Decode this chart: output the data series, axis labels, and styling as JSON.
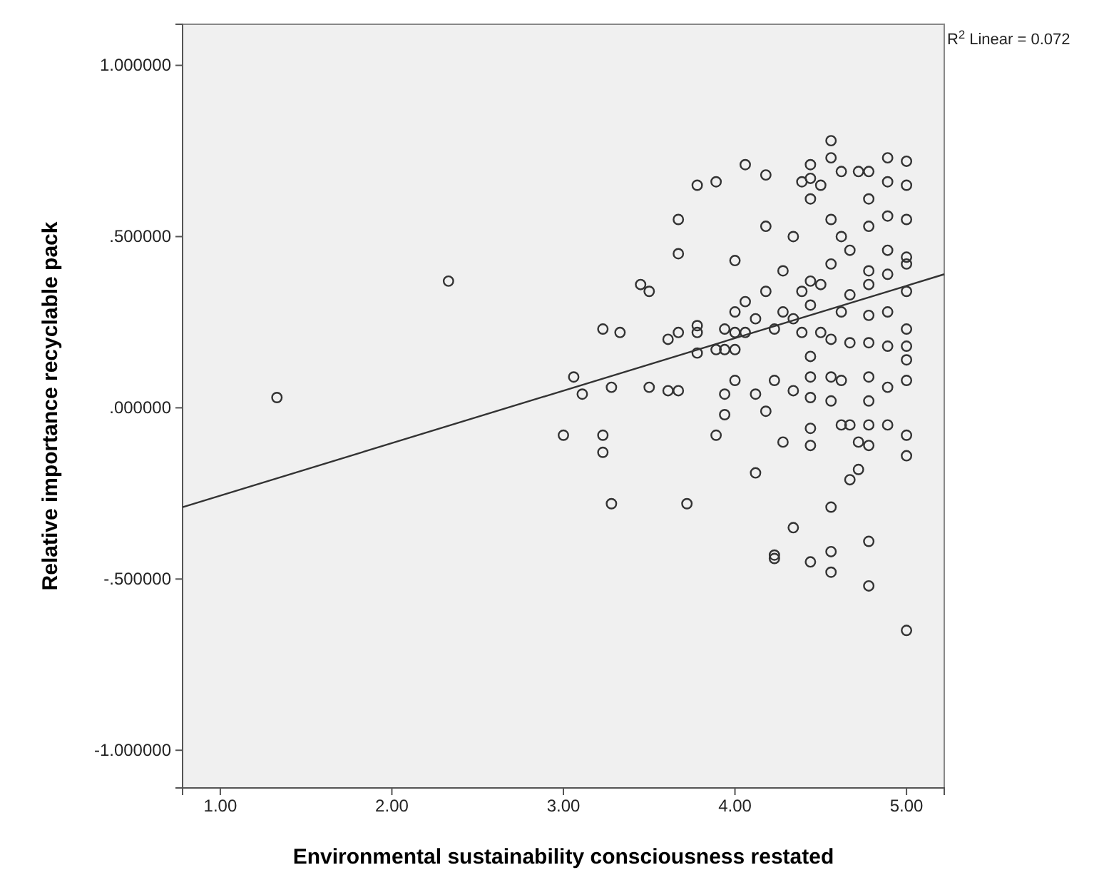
{
  "chart_data": {
    "type": "scatter",
    "xlabel": "Environmental sustainability consciousness restated",
    "ylabel": "Relative importance recyclable pack",
    "annotations": [
      "R$^{2}$ Linear = 0.072"
    ],
    "xlim": [
      0.78,
      5.22
    ],
    "xticks": [
      {
        "value": 1,
        "label": "1.00"
      },
      {
        "value": 2,
        "label": "2.00"
      },
      {
        "value": 3,
        "label": "3.00"
      },
      {
        "value": 4,
        "label": "4.00"
      },
      {
        "value": 5,
        "label": "5.00"
      }
    ],
    "ylim": [
      -1.11,
      1.12
    ],
    "yticks": [
      {
        "value": -1,
        "label": "-1.000000"
      },
      {
        "value": -0.5,
        "label": "-.500000"
      },
      {
        "value": 0,
        "label": ".000000"
      },
      {
        "value": 0.5,
        "label": ".500000"
      },
      {
        "value": 1,
        "label": "1.000000"
      }
    ],
    "grid": false,
    "series": [
      {
        "marker": "circle",
        "color": "#333333",
        "x": [
          1.33,
          2.33,
          3.0,
          3.06,
          3.11,
          3.23,
          3.33,
          3.23,
          3.23,
          3.28,
          3.28,
          3.45,
          3.5,
          3.5,
          3.61,
          3.61,
          3.67,
          3.67,
          3.67,
          3.67,
          3.72,
          3.78,
          3.78,
          3.78,
          3.78,
          3.89,
          3.89,
          3.89,
          3.94,
          3.94,
          3.94,
          3.94,
          4.0,
          4.0,
          4.0,
          4.0,
          4.0,
          4.06,
          4.06,
          4.06,
          4.12,
          4.12,
          4.12,
          4.18,
          4.18,
          4.18,
          4.18,
          4.23,
          4.23,
          4.23,
          4.23,
          4.28,
          4.28,
          4.28,
          4.34,
          4.34,
          4.34,
          4.34,
          4.39,
          4.39,
          4.39,
          4.44,
          4.44,
          4.44,
          4.44,
          4.44,
          4.44,
          4.44,
          4.44,
          4.44,
          4.44,
          4.44,
          4.5,
          4.5,
          4.5,
          4.56,
          4.56,
          4.56,
          4.56,
          4.56,
          4.56,
          4.56,
          4.56,
          4.56,
          4.56,
          4.62,
          4.62,
          4.62,
          4.62,
          4.62,
          4.67,
          4.67,
          4.67,
          4.67,
          4.67,
          4.72,
          4.72,
          4.72,
          4.78,
          4.78,
          4.78,
          4.78,
          4.78,
          4.78,
          4.78,
          4.78,
          4.78,
          4.78,
          4.78,
          4.78,
          4.78,
          4.89,
          4.89,
          4.89,
          4.89,
          4.89,
          4.89,
          4.89,
          4.89,
          4.89,
          5.0,
          5.0,
          5.0,
          5.0,
          5.0,
          5.0,
          5.0,
          5.0,
          5.0,
          5.0,
          5.0,
          5.0,
          5.0
        ],
        "values": [
          0.03,
          0.37,
          -0.08,
          0.09,
          0.04,
          0.23,
          0.22,
          -0.08,
          -0.13,
          -0.28,
          0.06,
          0.36,
          0.34,
          0.06,
          0.2,
          0.05,
          0.22,
          0.05,
          0.45,
          0.55,
          -0.28,
          0.22,
          0.24,
          0.16,
          0.65,
          0.66,
          -0.08,
          0.17,
          0.04,
          -0.02,
          0.17,
          0.23,
          0.43,
          0.28,
          0.22,
          0.17,
          0.08,
          0.71,
          0.31,
          0.22,
          -0.19,
          0.04,
          0.26,
          0.68,
          0.53,
          -0.01,
          0.34,
          0.08,
          0.23,
          -0.43,
          -0.44,
          0.4,
          -0.1,
          0.28,
          -0.35,
          0.05,
          0.26,
          0.5,
          0.22,
          0.34,
          0.66,
          0.71,
          0.67,
          0.61,
          0.37,
          0.3,
          0.15,
          0.09,
          0.03,
          -0.06,
          -0.11,
          -0.45,
          0.65,
          0.22,
          0.36,
          0.78,
          0.73,
          0.55,
          0.42,
          0.2,
          0.09,
          0.02,
          -0.42,
          -0.48,
          -0.29,
          0.69,
          0.5,
          0.28,
          0.08,
          -0.05,
          0.46,
          0.33,
          0.19,
          -0.05,
          -0.21,
          0.69,
          -0.18,
          -0.1,
          0.27,
          0.4,
          -0.11,
          0.69,
          0.61,
          0.53,
          0.36,
          0.19,
          0.09,
          0.02,
          -0.05,
          -0.39,
          -0.52,
          0.73,
          0.66,
          0.56,
          0.39,
          0.28,
          0.18,
          0.06,
          -0.05,
          0.46,
          0.72,
          0.65,
          0.55,
          0.42,
          0.34,
          0.23,
          0.14,
          0.08,
          -0.08,
          -0.14,
          -0.65,
          0.44,
          0.18
        ]
      },
      {
        "type": "line",
        "line_style": "solid",
        "color": "#333333",
        "x": [
          0.78,
          5.22
        ],
        "values": [
          -0.29,
          0.39
        ]
      }
    ]
  }
}
